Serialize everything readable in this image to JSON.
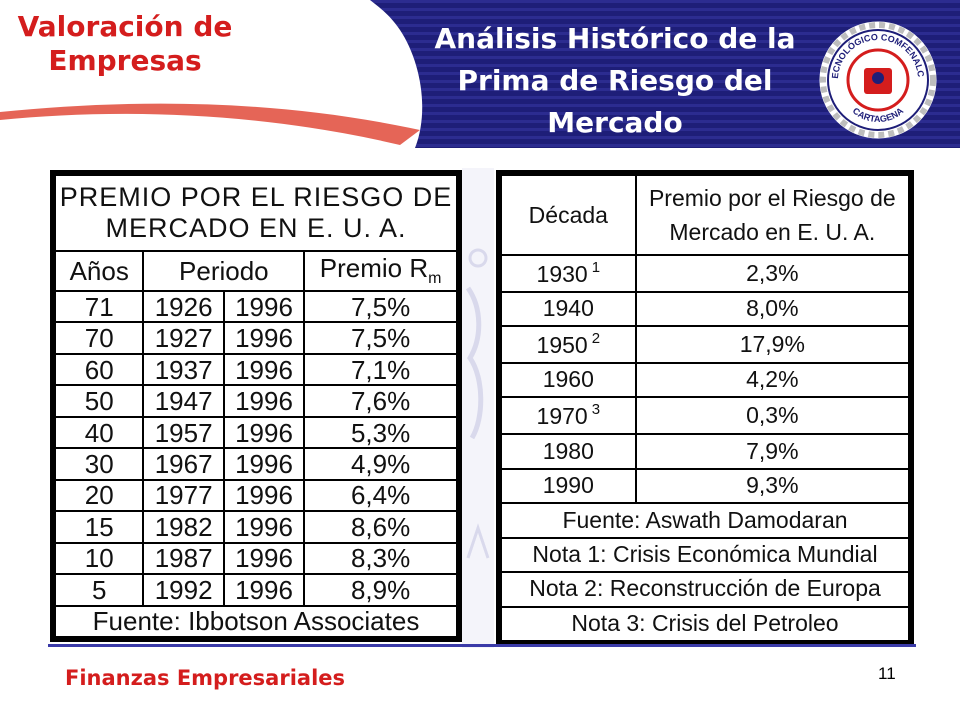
{
  "header": {
    "left_title": "Valoración de Empresas",
    "main_title": "Análisis Histórico de la Prima de Riesgo del Mercado"
  },
  "logo": {
    "top_text": "TECNOLÓGICO COMFENALCO",
    "bottom_text": "CARTAGENA",
    "icon": "institution-seal-icon"
  },
  "left_table": {
    "title": "PREMIO POR EL RIESGO DE MERCADO EN E. U. A.",
    "headers": {
      "years": "Años",
      "period": "Periodo",
      "premium": "Premio R",
      "premium_sub": "m"
    },
    "rows": [
      {
        "years": "71",
        "start": "1926",
        "end": "1996",
        "premium": "7,5%"
      },
      {
        "years": "70",
        "start": "1927",
        "end": "1996",
        "premium": "7,5%"
      },
      {
        "years": "60",
        "start": "1937",
        "end": "1996",
        "premium": "7,1%"
      },
      {
        "years": "50",
        "start": "1947",
        "end": "1996",
        "premium": "7,6%"
      },
      {
        "years": "40",
        "start": "1957",
        "end": "1996",
        "premium": "5,3%"
      },
      {
        "years": "30",
        "start": "1967",
        "end": "1996",
        "premium": "4,9%"
      },
      {
        "years": "20",
        "start": "1977",
        "end": "1996",
        "premium": "6,4%"
      },
      {
        "years": "15",
        "start": "1982",
        "end": "1996",
        "premium": "8,6%"
      },
      {
        "years": "10",
        "start": "1987",
        "end": "1996",
        "premium": "8,3%"
      },
      {
        "years": "5",
        "start": "1992",
        "end": "1996",
        "premium": "8,9%"
      }
    ],
    "source": "Fuente: Ibbotson Associates"
  },
  "right_table": {
    "headers": {
      "decade": "Década",
      "premium": "Premio por el Riesgo de Mercado en E. U. A."
    },
    "rows": [
      {
        "decade": "1930",
        "note": "1",
        "premium": "2,3%"
      },
      {
        "decade": "1940",
        "note": "",
        "premium": "8,0%"
      },
      {
        "decade": "1950",
        "note": "2",
        "premium": "17,9%"
      },
      {
        "decade": "1960",
        "note": "",
        "premium": "4,2%"
      },
      {
        "decade": "1970",
        "note": "3",
        "premium": "0,3%"
      },
      {
        "decade": "1980",
        "note": "",
        "premium": "7,9%"
      },
      {
        "decade": "1990",
        "note": "",
        "premium": "9,3%"
      }
    ],
    "notes": [
      "Fuente: Aswath Damodaran",
      "Nota 1: Crisis Económica Mundial",
      "Nota 2: Reconstrucción de Europa",
      "Nota 3: Crisis del Petroleo"
    ]
  },
  "footer": {
    "course": "Finanzas Empresariales",
    "page_number": "11"
  },
  "colors": {
    "title_red": "#d41d1d",
    "header_navy": "#1e1e78",
    "swoosh_red": "#e04a3a"
  }
}
